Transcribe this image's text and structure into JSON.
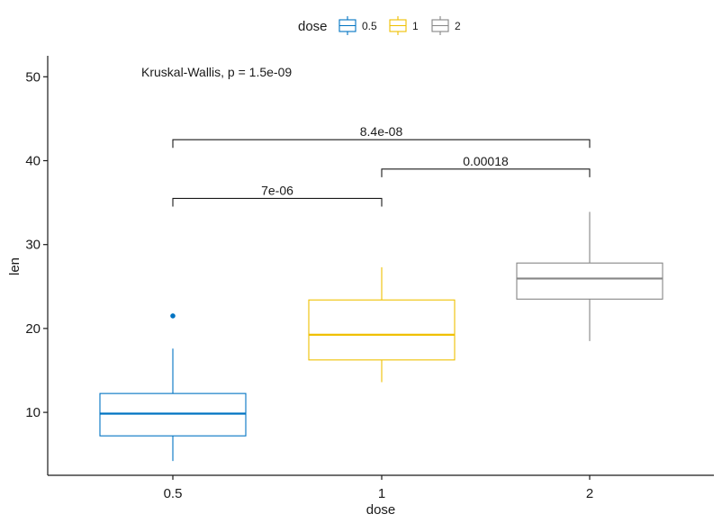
{
  "chart_data": {
    "type": "boxplot",
    "xlabel": "dose",
    "ylabel": "len",
    "categories": [
      "0.5",
      "1",
      "2"
    ],
    "ylim": [
      2.5,
      52.5
    ],
    "yticks": [
      10,
      20,
      30,
      40,
      50
    ],
    "series": [
      {
        "name": "0.5",
        "color": "#0073C2",
        "min": 4.2,
        "q1": 7.2,
        "median": 9.85,
        "q3": 12.25,
        "max": 17.6,
        "outliers": [
          21.5
        ]
      },
      {
        "name": "1",
        "color": "#EFC000",
        "min": 13.6,
        "q1": 16.25,
        "median": 19.25,
        "q3": 23.4,
        "max": 27.3,
        "outliers": []
      },
      {
        "name": "2",
        "color": "#868686",
        "min": 18.5,
        "q1": 23.5,
        "median": 25.95,
        "q3": 27.8,
        "max": 33.9,
        "outliers": []
      }
    ],
    "legend": {
      "title": "dose",
      "position": "top",
      "items": [
        "0.5",
        "1",
        "2"
      ]
    },
    "grid": false,
    "annotations": {
      "global_test": {
        "text": "Kruskal-Wallis, p = 1.5e-09",
        "y": 50
      },
      "comparisons": [
        {
          "from": "0.5",
          "to": "1",
          "label": "7e-06",
          "y": 35.5
        },
        {
          "from": "1",
          "to": "2",
          "label": "0.00018",
          "y": 39.0
        },
        {
          "from": "0.5",
          "to": "2",
          "label": "8.4e-08",
          "y": 42.5
        }
      ]
    }
  }
}
